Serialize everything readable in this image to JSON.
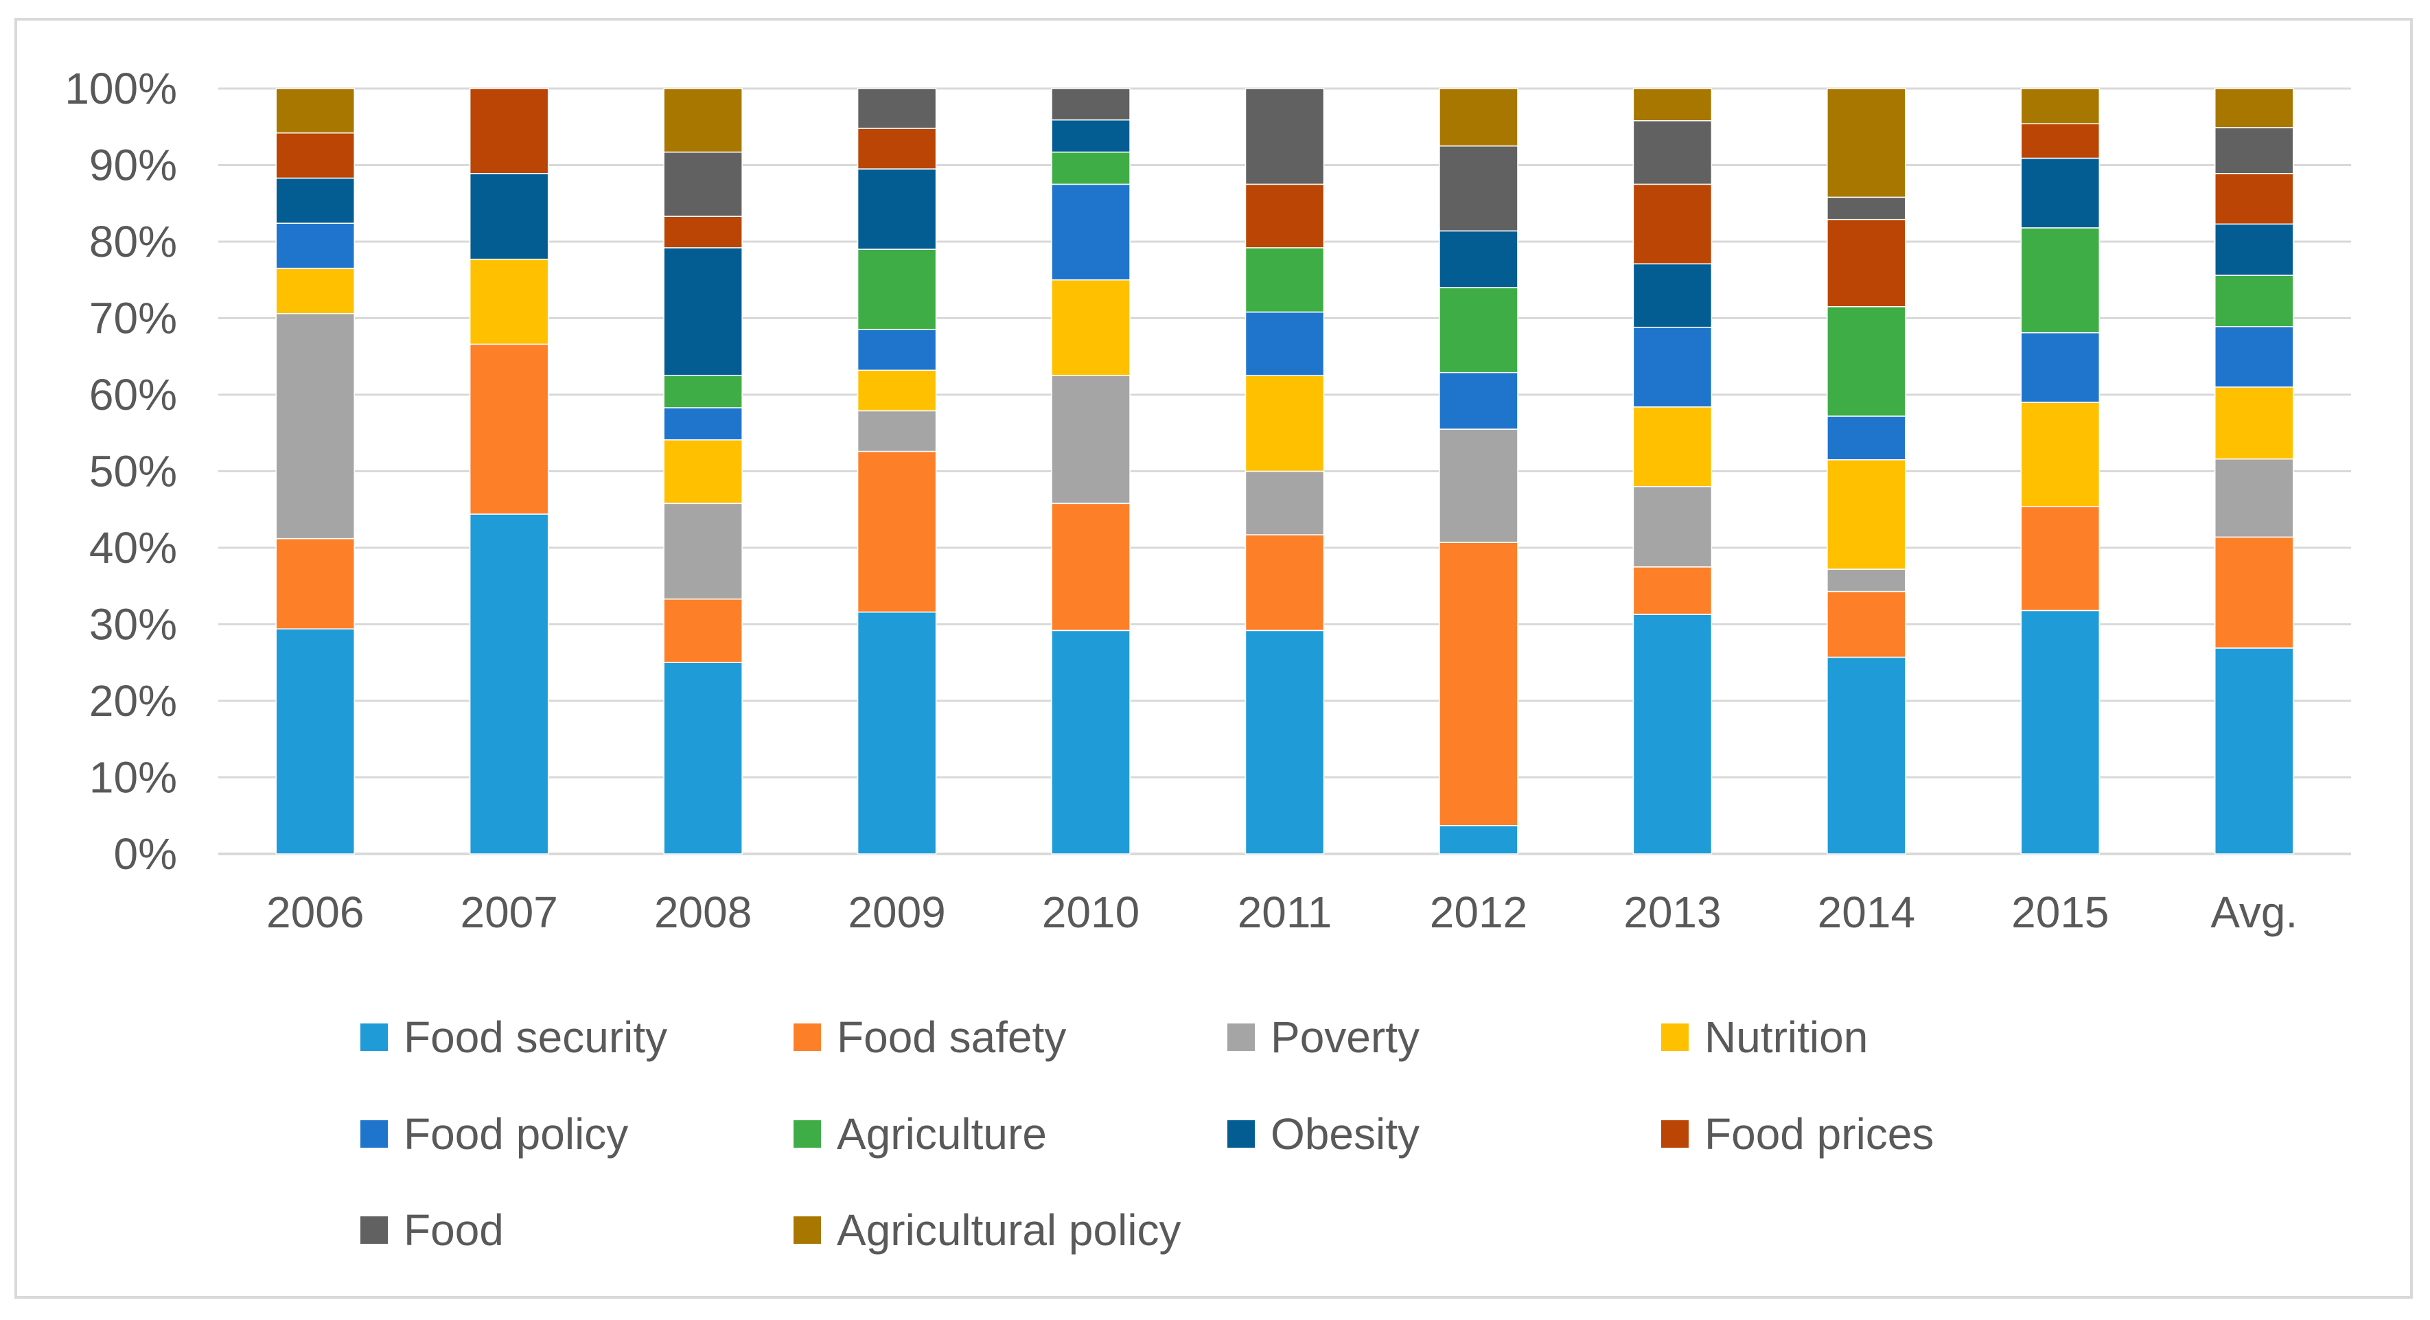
{
  "chart_data": {
    "type": "bar",
    "stacked": true,
    "percent_stacked": true,
    "title": "",
    "xlabel": "",
    "ylabel": "",
    "ylim": [
      0,
      100
    ],
    "y_ticks": [
      "0%",
      "10%",
      "20%",
      "30%",
      "40%",
      "50%",
      "60%",
      "70%",
      "80%",
      "90%",
      "100%"
    ],
    "grid": true,
    "legend_position": "bottom",
    "categories": [
      "2006",
      "2007",
      "2008",
      "2009",
      "2010",
      "2011",
      "2012",
      "2013",
      "2014",
      "2015",
      "Avg."
    ],
    "series": [
      {
        "name": "Food security",
        "color": "#1f9bd7",
        "values": [
          29.4,
          44.4,
          25.0,
          31.6,
          29.2,
          29.2,
          3.7,
          31.3,
          25.7,
          31.8,
          26.9
        ]
      },
      {
        "name": "Food safety",
        "color": "#fd7f28",
        "values": [
          11.8,
          22.2,
          8.3,
          21.0,
          16.6,
          12.5,
          37.0,
          6.2,
          8.6,
          13.6,
          14.5
        ]
      },
      {
        "name": "Poverty",
        "color": "#a5a5a5",
        "values": [
          29.4,
          0,
          12.5,
          5.3,
          16.7,
          8.3,
          14.8,
          10.5,
          2.9,
          0,
          10.2
        ]
      },
      {
        "name": "Nutrition",
        "color": "#ffc000",
        "values": [
          5.9,
          11.1,
          8.3,
          5.3,
          12.5,
          12.5,
          0,
          10.4,
          14.3,
          13.6,
          9.4
        ]
      },
      {
        "name": "Food policy",
        "color": "#1f75cc",
        "values": [
          5.9,
          0,
          4.2,
          5.3,
          12.5,
          8.3,
          7.4,
          10.4,
          5.7,
          9.1,
          7.9
        ]
      },
      {
        "name": "Agriculture",
        "color": "#3fad46",
        "values": [
          0,
          0,
          4.2,
          10.5,
          4.2,
          8.4,
          11.1,
          0,
          14.3,
          13.7,
          6.7
        ]
      },
      {
        "name": "Obesity",
        "color": "#035d93",
        "values": [
          5.9,
          11.2,
          16.7,
          10.5,
          4.2,
          0,
          7.4,
          8.3,
          0,
          9.1,
          6.7
        ]
      },
      {
        "name": "Food prices",
        "color": "#ba4504",
        "values": [
          5.9,
          11.1,
          4.1,
          5.3,
          0,
          8.3,
          0,
          10.4,
          11.4,
          4.5,
          6.6
        ]
      },
      {
        "name": "Food",
        "color": "#616161",
        "values": [
          0,
          0,
          8.4,
          5.2,
          4.1,
          12.5,
          11.1,
          8.3,
          2.9,
          0,
          6.0
        ]
      },
      {
        "name": "Agricultural policy",
        "color": "#a87700",
        "values": [
          5.8,
          0,
          8.3,
          0,
          0,
          0,
          7.5,
          4.2,
          14.2,
          4.6,
          5.1
        ]
      }
    ]
  }
}
